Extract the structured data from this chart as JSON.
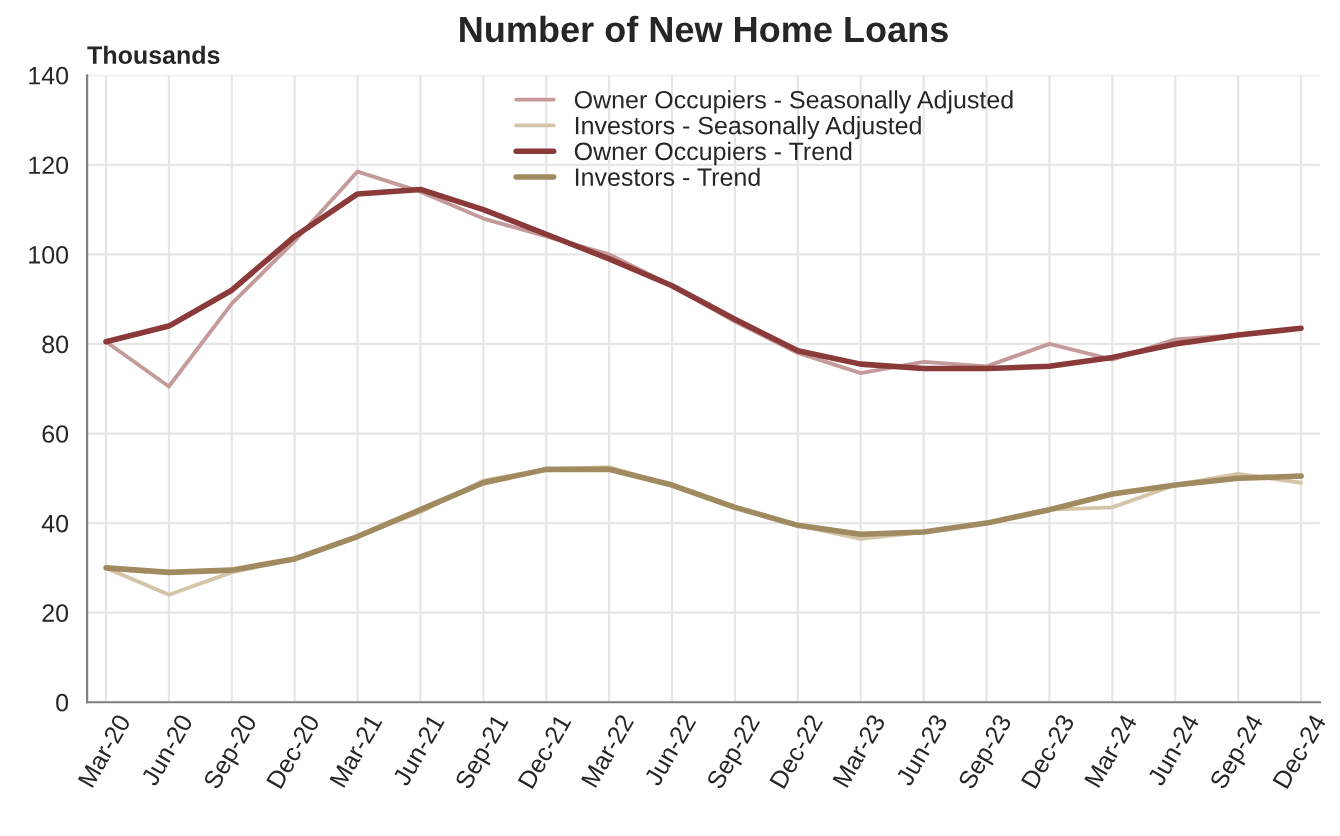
{
  "chart_data": {
    "type": "line",
    "title": "Number of New Home Loans",
    "ylabel": "Thousands",
    "categories": [
      "Mar-20",
      "Jun-20",
      "Sep-20",
      "Dec-20",
      "Mar-21",
      "Jun-21",
      "Sep-21",
      "Dec-21",
      "Mar-22",
      "Jun-22",
      "Sep-22",
      "Dec-22",
      "Mar-23",
      "Jun-23",
      "Sep-23",
      "Dec-23",
      "Mar-24",
      "Jun-24",
      "Sep-24",
      "Dec-24"
    ],
    "series": [
      {
        "name": "Owner Occupiers - Seasonally Adjusted",
        "color": "#c49a9a",
        "values": [
          80.5,
          70.5,
          89,
          103,
          118.5,
          114,
          108,
          104,
          100,
          93,
          85,
          78,
          73.5,
          76,
          75,
          80,
          76.5,
          81,
          82,
          83.5
        ]
      },
      {
        "name": "Investors - Seasonally Adjusted",
        "color": "#d4c4a8",
        "values": [
          30,
          24,
          29,
          32,
          37,
          42.5,
          49.5,
          52,
          52.5,
          48.5,
          43.5,
          39.5,
          36.5,
          38,
          40,
          43,
          43.5,
          48.5,
          51,
          49
        ]
      },
      {
        "name": "Owner Occupiers - Trend",
        "color": "#8b3a3a",
        "values": [
          80.5,
          84,
          92,
          104,
          113.5,
          114.5,
          110,
          104.5,
          99,
          93,
          85.5,
          78.5,
          75.5,
          74.5,
          74.5,
          75,
          77,
          80,
          82,
          83.5
        ]
      },
      {
        "name": "Investors - Trend",
        "color": "#a08a60",
        "values": [
          30,
          29,
          29.5,
          32,
          37,
          43,
          49,
          52,
          52,
          48.5,
          43.5,
          39.5,
          37.5,
          38,
          40,
          43,
          46.5,
          48.5,
          50,
          50.5
        ]
      }
    ],
    "ylim": [
      0,
      140
    ],
    "yticks": [
      0,
      20,
      40,
      60,
      80,
      100,
      120,
      140
    ],
    "grid": true,
    "legend": "top",
    "line_style": "solid",
    "marker": "none"
  }
}
